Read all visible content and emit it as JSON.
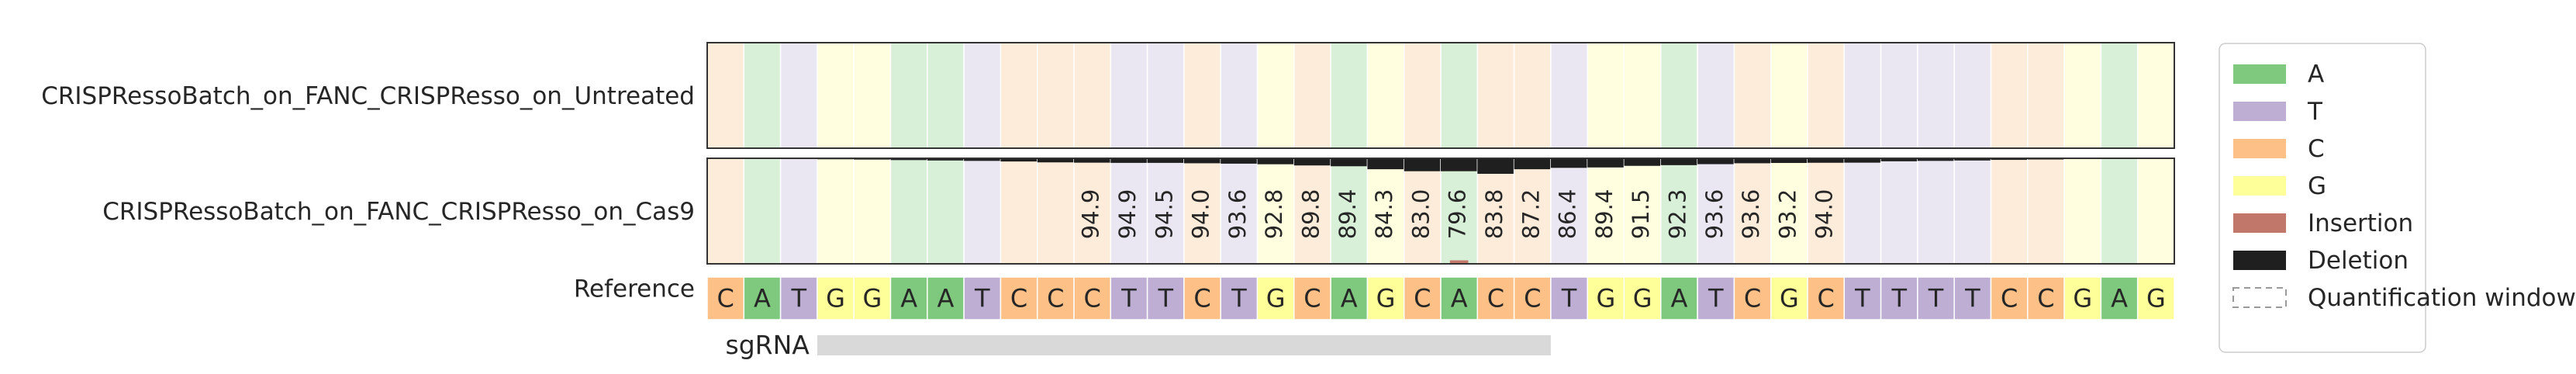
{
  "chart_data": {
    "type": "heatmap",
    "colors": {
      "A": "#7fc97f",
      "T": "#beaed4",
      "C": "#fdc086",
      "G": "#ffff99",
      "Insertion": "#c1786a",
      "Deletion": "#1f1f1f",
      "sgrna_bar": "#d9d9d9"
    },
    "reference_label": "Reference",
    "reference": [
      "C",
      "A",
      "T",
      "G",
      "G",
      "A",
      "A",
      "T",
      "C",
      "C",
      "C",
      "T",
      "T",
      "C",
      "T",
      "G",
      "C",
      "A",
      "G",
      "C",
      "A",
      "C",
      "C",
      "T",
      "G",
      "G",
      "A",
      "T",
      "C",
      "G",
      "C",
      "T",
      "T",
      "T",
      "T",
      "C",
      "C",
      "G",
      "A",
      "G"
    ],
    "samples": [
      {
        "name": "CRISPRessoBatch_on_FANC_CRISPResso_on_Untreated",
        "deletion_pct": [
          0,
          0,
          0,
          0,
          0,
          0,
          0,
          0,
          0,
          0,
          0,
          0,
          0,
          0,
          0,
          0,
          0,
          0,
          0,
          0,
          0,
          0,
          0,
          0,
          0,
          0,
          0,
          0,
          0,
          0,
          0,
          0,
          0,
          0,
          0,
          0,
          0,
          0,
          0,
          0
        ],
        "insertion_pct": [
          0,
          0,
          0,
          0,
          0,
          0,
          0,
          0,
          0,
          0,
          0,
          0,
          0,
          0,
          0,
          0,
          0,
          0,
          0,
          0,
          0,
          0,
          0,
          0,
          0,
          0,
          0,
          0,
          0,
          0,
          0,
          0,
          0,
          0,
          0,
          0,
          0,
          0,
          0,
          0
        ],
        "value_labels": [
          "",
          "",
          "",
          "",
          "",
          "",
          "",
          "",
          "",
          "",
          "",
          "",
          "",
          "",
          "",
          "",
          "",
          "",
          "",
          "",
          "",
          "",
          "",
          "",
          "",
          "",
          "",
          "",
          "",
          "",
          "",
          "",
          "",
          "",
          "",
          "",
          "",
          "",
          "",
          ""
        ]
      },
      {
        "name": "CRISPRessoBatch_on_FANC_CRISPResso_on_Cas9",
        "deletion_pct": [
          0.3,
          0.5,
          0.8,
          1.0,
          1.3,
          1.8,
          2.2,
          2.6,
          3.2,
          4.1,
          4.4,
          4.6,
          4.6,
          5.0,
          5.4,
          6.0,
          7.2,
          8.0,
          11.0,
          13.0,
          13.0,
          15.6,
          11.0,
          9.6,
          9.2,
          7.6,
          6.9,
          5.9,
          5.0,
          4.7,
          4.5,
          4.4,
          3.0,
          2.6,
          2.2,
          1.6,
          1.2,
          0.8,
          0.5,
          0.3
        ],
        "insertion_pct": [
          0,
          0,
          0,
          0,
          0,
          0,
          0,
          0,
          0,
          0,
          0,
          0,
          0,
          0,
          0,
          0,
          0,
          0,
          0,
          0,
          1.5,
          0,
          0,
          0,
          0,
          0,
          0,
          0,
          0,
          0,
          0,
          0,
          0,
          0,
          0,
          0,
          0,
          0,
          0,
          0
        ],
        "value_labels": [
          "",
          "",
          "",
          "",
          "",
          "",
          "",
          "",
          "",
          "",
          "94.9",
          "94.9",
          "94.5",
          "94.0",
          "93.6",
          "92.8",
          "89.8",
          "89.4",
          "84.3",
          "83.0",
          "79.6",
          "83.8",
          "87.2",
          "86.4",
          "89.4",
          "91.5",
          "92.3",
          "93.6",
          "93.6",
          "93.2",
          "94.0",
          "",
          "",
          "",
          "",
          "",
          "",
          "",
          "",
          ""
        ]
      }
    ],
    "sgrna": {
      "label": "sgRNA",
      "start": 3,
      "end": 23
    },
    "legend": {
      "placement": "right",
      "items": [
        {
          "key": "A",
          "label": "A"
        },
        {
          "key": "T",
          "label": "T"
        },
        {
          "key": "C",
          "label": "C"
        },
        {
          "key": "G",
          "label": "G"
        },
        {
          "key": "Insertion",
          "label": "Insertion"
        },
        {
          "key": "Deletion",
          "label": "Deletion"
        },
        {
          "key": "window",
          "label": "Quantification window"
        }
      ]
    }
  }
}
